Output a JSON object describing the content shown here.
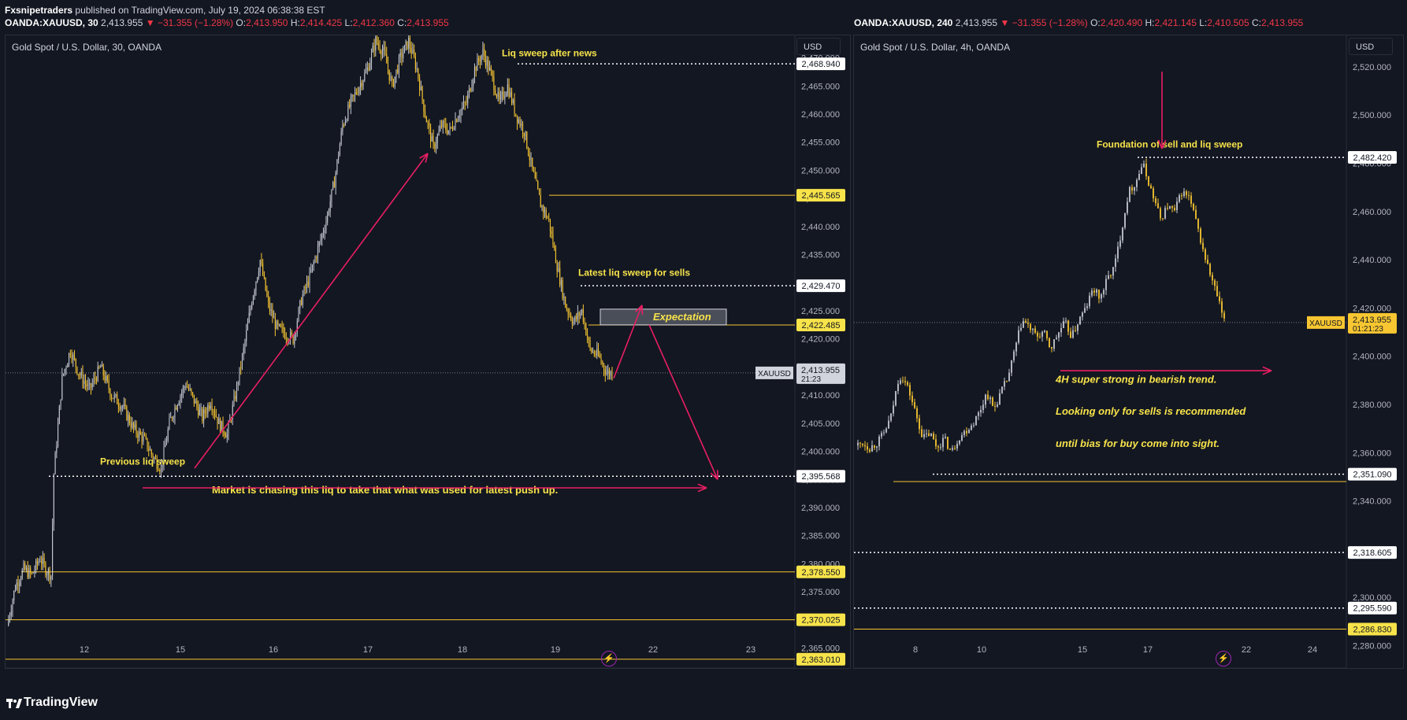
{
  "header": {
    "publisher": "Fxsnipetraders",
    "published_text": "published on TradingView.com, July 19, 2024 06:38:38 EST",
    "left_symbol": "OANDA:XAUUSD, 30",
    "left_last": "2,413.955",
    "left_change": "−31.355 (−1.28%)",
    "left_ohlc": {
      "o": "2,413.950",
      "h": "2,414.425",
      "l": "2,412.360",
      "c": "2,413.955"
    },
    "right_symbol": "OANDA:XAUUSD, 240",
    "right_last": "2,413.955",
    "right_change": "−31.355 (−1.28%)",
    "right_ohlc": {
      "o": "2,420.490",
      "h": "2,421.145",
      "l": "2,410.505",
      "c": "2,413.955"
    }
  },
  "left_pane": {
    "title": "Gold Spot / U.S. Dollar, 30, OANDA",
    "currency": "USD"
  },
  "right_pane": {
    "title": "Gold Spot / U.S. Dollar, 4h, OANDA",
    "currency": "USD"
  },
  "footer": {
    "brand": "TradingView"
  },
  "colors": {
    "background": "#131722",
    "bull": "#c5c8d0",
    "bear": "#f7c631",
    "level_line": "#f7c631",
    "arrow": "#e91e63",
    "annotation_text": "#f7e34a",
    "label_bg": "#f7e34a"
  },
  "chart_data": [
    {
      "type": "candlestick",
      "symbol": "OANDA:XAUUSD",
      "timeframe": "30",
      "x_ticks": [
        "12",
        "15",
        "16",
        "17",
        "18",
        "19",
        "22",
        "23"
      ],
      "y_ticks": [
        "2,365.000",
        "2,370.000",
        "2,375.000",
        "2,380.000",
        "2,385.000",
        "2,390.000",
        "2,395.000",
        "2,400.000",
        "2,405.000",
        "2,410.000",
        "2,415.000",
        "2,420.000",
        "2,425.000",
        "2,430.000",
        "2,435.000",
        "2,440.000",
        "2,445.000",
        "2,450.000",
        "2,455.000",
        "2,460.000",
        "2,465.000",
        "2,470.000"
      ],
      "ylim": [
        2362,
        2474
      ],
      "close_path": [
        [
          0,
          2369
        ],
        [
          3,
          2376
        ],
        [
          6,
          2379
        ],
        [
          9,
          2378
        ],
        [
          12,
          2381
        ],
        [
          14,
          2379
        ],
        [
          16,
          2378
        ],
        [
          17,
          2396
        ],
        [
          20,
          2413
        ],
        [
          23,
          2418
        ],
        [
          26,
          2414
        ],
        [
          30,
          2411
        ],
        [
          34,
          2415
        ],
        [
          38,
          2410
        ],
        [
          42,
          2408
        ],
        [
          46,
          2404
        ],
        [
          50,
          2402
        ],
        [
          53,
          2399
        ],
        [
          56,
          2397
        ],
        [
          59,
          2405
        ],
        [
          62,
          2409
        ],
        [
          65,
          2412
        ],
        [
          68,
          2409
        ],
        [
          71,
          2406
        ],
        [
          74,
          2409
        ],
        [
          77,
          2405
        ],
        [
          80,
          2403
        ],
        [
          83,
          2410
        ],
        [
          86,
          2418
        ],
        [
          89,
          2427
        ],
        [
          92,
          2434
        ],
        [
          95,
          2426
        ],
        [
          98,
          2422
        ],
        [
          101,
          2421
        ],
        [
          104,
          2420
        ],
        [
          107,
          2427
        ],
        [
          110,
          2431
        ],
        [
          113,
          2436
        ],
        [
          116,
          2441
        ],
        [
          119,
          2448
        ],
        [
          122,
          2458
        ],
        [
          125,
          2462
        ],
        [
          128,
          2465
        ],
        [
          131,
          2468
        ],
        [
          134,
          2473
        ],
        [
          137,
          2471
        ],
        [
          140,
          2465
        ],
        [
          143,
          2470
        ],
        [
          146,
          2473
        ],
        [
          149,
          2468
        ],
        [
          152,
          2460
        ],
        [
          155,
          2454
        ],
        [
          158,
          2458
        ],
        [
          161,
          2457
        ],
        [
          164,
          2460
        ],
        [
          167,
          2462
        ],
        [
          170,
          2468
        ],
        [
          173,
          2471
        ],
        [
          176,
          2467
        ],
        [
          179,
          2462
        ],
        [
          182,
          2465
        ],
        [
          185,
          2460
        ],
        [
          188,
          2457
        ],
        [
          191,
          2450
        ],
        [
          194,
          2444
        ],
        [
          197,
          2441
        ],
        [
          200,
          2433
        ],
        [
          203,
          2426
        ],
        [
          206,
          2423
        ],
        [
          209,
          2425
        ],
        [
          212,
          2418
        ],
        [
          215,
          2417
        ],
        [
          218,
          2414
        ],
        [
          220,
          2413.955
        ]
      ],
      "levels": [
        {
          "price": "2,468.940",
          "style": "dotted",
          "color": "white"
        },
        {
          "price": "2,445.565",
          "style": "solid",
          "color": "yellow"
        },
        {
          "price": "2,429.470",
          "style": "dotted",
          "color": "white"
        },
        {
          "price": "2,422.485",
          "style": "solid",
          "color": "yellow"
        },
        {
          "price": "2,395.568",
          "style": "dotted",
          "color": "white"
        },
        {
          "price": "2,378.550",
          "style": "solid",
          "color": "yellow"
        },
        {
          "price": "2,370.025",
          "style": "solid",
          "color": "yellow"
        },
        {
          "price": "2,363.010",
          "style": "solid",
          "color": "yellow"
        }
      ],
      "price_labels": [
        "2,468.940",
        "2,445.565",
        "2,429.470",
        "2,422.485",
        "2,395.568",
        "2,378.550",
        "2,370.025",
        "2,363.010"
      ],
      "current_price_label": {
        "symbol": "XAUUSD",
        "price": "2,413.955",
        "countdown": "21:23"
      },
      "annotations": [
        "Liq sweep after news",
        "Latest liq sweep for sells",
        "Expectation",
        "Previous liq sweep",
        "Market is chasing this liq to take that what was used for latest push up."
      ]
    },
    {
      "type": "candlestick",
      "symbol": "OANDA:XAUUSD",
      "timeframe": "4h",
      "x_ticks": [
        "8",
        "10",
        "15",
        "17",
        "22",
        "24"
      ],
      "y_ticks": [
        "2,280.000",
        "2,300.000",
        "2,320.000",
        "2,340.000",
        "2,360.000",
        "2,380.000",
        "2,400.000",
        "2,420.000",
        "2,440.000",
        "2,460.000",
        "2,480.000",
        "2,500.000",
        "2,520.000"
      ],
      "ylim": [
        2272,
        2533
      ],
      "close_path": [
        [
          0,
          2363
        ],
        [
          2,
          2364
        ],
        [
          4,
          2362
        ],
        [
          6,
          2364
        ],
        [
          8,
          2368
        ],
        [
          10,
          2375
        ],
        [
          12,
          2390
        ],
        [
          13,
          2392
        ],
        [
          15,
          2386
        ],
        [
          17,
          2376
        ],
        [
          19,
          2366
        ],
        [
          21,
          2368
        ],
        [
          23,
          2362
        ],
        [
          25,
          2366
        ],
        [
          27,
          2360
        ],
        [
          29,
          2366
        ],
        [
          31,
          2369
        ],
        [
          33,
          2372
        ],
        [
          35,
          2377
        ],
        [
          37,
          2385
        ],
        [
          39,
          2378
        ],
        [
          41,
          2385
        ],
        [
          43,
          2391
        ],
        [
          45,
          2403
        ],
        [
          47,
          2415
        ],
        [
          49,
          2412
        ],
        [
          51,
          2408
        ],
        [
          53,
          2410
        ],
        [
          55,
          2403
        ],
        [
          57,
          2409
        ],
        [
          59,
          2414
        ],
        [
          61,
          2408
        ],
        [
          63,
          2415
        ],
        [
          65,
          2420
        ],
        [
          67,
          2428
        ],
        [
          69,
          2424
        ],
        [
          71,
          2432
        ],
        [
          73,
          2437
        ],
        [
          75,
          2452
        ],
        [
          77,
          2468
        ],
        [
          79,
          2472
        ],
        [
          81,
          2480
        ],
        [
          82,
          2475
        ],
        [
          84,
          2466
        ],
        [
          86,
          2457
        ],
        [
          88,
          2462
        ],
        [
          90,
          2460
        ],
        [
          92,
          2468
        ],
        [
          94,
          2466
        ],
        [
          96,
          2456
        ],
        [
          98,
          2444
        ],
        [
          100,
          2434
        ],
        [
          102,
          2425
        ],
        [
          104,
          2414
        ]
      ],
      "levels": [
        {
          "price": "2,482.420",
          "style": "dotted",
          "color": "white"
        },
        {
          "price": "2,351.090",
          "style": "dotted",
          "color": "white"
        },
        {
          "price": "2,348.000",
          "style": "solid",
          "color": "yellow"
        },
        {
          "price": "2,318.605",
          "style": "dotted",
          "color": "white"
        },
        {
          "price": "2,295.590",
          "style": "dotted",
          "color": "white"
        },
        {
          "price": "2,286.830",
          "style": "solid",
          "color": "yellow"
        }
      ],
      "price_labels": [
        "2,482.420",
        "2,351.090",
        "2,318.605",
        "2,295.590",
        "2,286.830"
      ],
      "current_price_label": {
        "symbol": "XAUUSD",
        "price": "2,413.955",
        "countdown": "01:21:23"
      },
      "annotations": [
        "Foundation of sell and liq sweep",
        "4H super strong in bearish trend.",
        "Looking only for sells is recommended",
        "until bias for buy come into sight."
      ]
    }
  ]
}
